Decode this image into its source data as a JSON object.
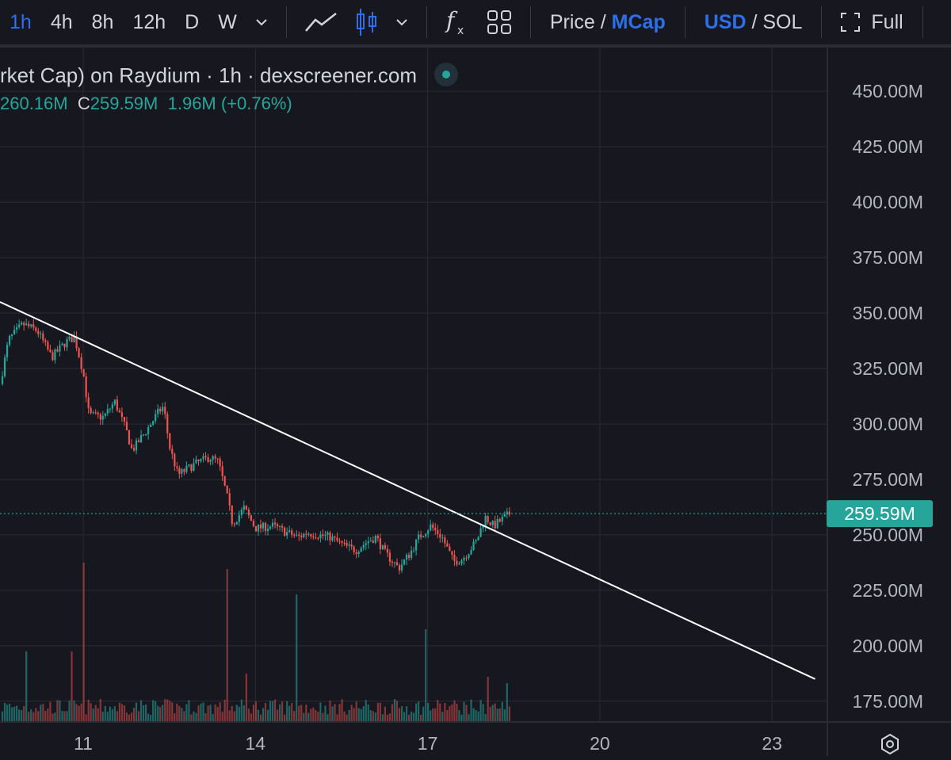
{
  "toolbar": {
    "intervals": [
      "1h",
      "4h",
      "8h",
      "12h",
      "D",
      "W"
    ],
    "active_interval": "1h",
    "price_label": "Price",
    "mcap_label": "MCap",
    "usd_label": "USD",
    "sol_label": "SOL",
    "separator": "/",
    "full_label": "Full",
    "icons": [
      "chevron-down-icon",
      "line-chart-icon",
      "candlestick-icon",
      "chevron-down-icon",
      "indicators-fx-icon",
      "layout-grid-icon",
      "fullscreen-icon"
    ]
  },
  "legend": {
    "title": "rket Cap) on Raydium · 1h · dexscreener.com",
    "high_value": "260.16M",
    "close_prefix": "C",
    "close_value": "259.59M",
    "change": "1.96M (+0.76%)"
  },
  "chart_data": {
    "type": "candlestick",
    "interval": "1h",
    "y_axis_labels": [
      "450.00M",
      "425.00M",
      "400.00M",
      "375.00M",
      "350.00M",
      "325.00M",
      "300.00M",
      "275.00M",
      "250.00M",
      "225.00M",
      "200.00M",
      "175.00M"
    ],
    "y_ticks": [
      450,
      425,
      400,
      375,
      350,
      325,
      300,
      275,
      250,
      225,
      200,
      175
    ],
    "ylim": [
      166,
      469
    ],
    "y_unit": "M (USD market cap)",
    "x_axis_labels": [
      "11",
      "14",
      "17",
      "20",
      "23"
    ],
    "x_ticks_day": [
      11,
      14,
      17,
      20,
      23
    ],
    "xlim_day": [
      9.55,
      23.95
    ],
    "last_value": 259.59,
    "last_value_label": "259.59M",
    "trendline": {
      "from": {
        "day": 9.55,
        "value": 355
      },
      "to": {
        "day": 23.75,
        "value": 185
      }
    },
    "price_path": [
      {
        "day": 9.55,
        "value": 318
      },
      {
        "day": 9.7,
        "value": 338
      },
      {
        "day": 9.95,
        "value": 345
      },
      {
        "day": 10.2,
        "value": 342
      },
      {
        "day": 10.45,
        "value": 330
      },
      {
        "day": 10.7,
        "value": 337
      },
      {
        "day": 10.85,
        "value": 339
      },
      {
        "day": 11.0,
        "value": 323
      },
      {
        "day": 11.1,
        "value": 304
      },
      {
        "day": 11.35,
        "value": 303
      },
      {
        "day": 11.55,
        "value": 310
      },
      {
        "day": 11.75,
        "value": 297
      },
      {
        "day": 11.85,
        "value": 288
      },
      {
        "day": 12.1,
        "value": 297
      },
      {
        "day": 12.3,
        "value": 305
      },
      {
        "day": 12.4,
        "value": 308
      },
      {
        "day": 12.5,
        "value": 290
      },
      {
        "day": 12.65,
        "value": 277
      },
      {
        "day": 12.95,
        "value": 282
      },
      {
        "day": 13.2,
        "value": 285
      },
      {
        "day": 13.35,
        "value": 283
      },
      {
        "day": 13.5,
        "value": 268
      },
      {
        "day": 13.6,
        "value": 255
      },
      {
        "day": 13.8,
        "value": 262
      },
      {
        "day": 14.0,
        "value": 253
      },
      {
        "day": 14.3,
        "value": 254
      },
      {
        "day": 14.55,
        "value": 251
      },
      {
        "day": 14.75,
        "value": 249
      },
      {
        "day": 14.9,
        "value": 251
      },
      {
        "day": 15.3,
        "value": 249
      },
      {
        "day": 15.55,
        "value": 245
      },
      {
        "day": 15.75,
        "value": 243
      },
      {
        "day": 15.95,
        "value": 247
      },
      {
        "day": 16.1,
        "value": 249
      },
      {
        "day": 16.25,
        "value": 242
      },
      {
        "day": 16.5,
        "value": 235
      },
      {
        "day": 16.7,
        "value": 242
      },
      {
        "day": 16.85,
        "value": 249
      },
      {
        "day": 17.05,
        "value": 254
      },
      {
        "day": 17.25,
        "value": 249
      },
      {
        "day": 17.45,
        "value": 238
      },
      {
        "day": 17.6,
        "value": 239
      },
      {
        "day": 17.85,
        "value": 247
      },
      {
        "day": 18.0,
        "value": 258
      },
      {
        "day": 18.15,
        "value": 254
      },
      {
        "day": 18.3,
        "value": 257
      },
      {
        "day": 18.45,
        "value": 260
      }
    ],
    "volume_spikes": [
      {
        "day": 10.0,
        "volume": 0.22
      },
      {
        "day": 10.8,
        "volume": 0.22
      },
      {
        "day": 11.0,
        "volume": 0.5
      },
      {
        "day": 13.5,
        "volume": 0.48
      },
      {
        "day": 13.85,
        "volume": 0.15
      },
      {
        "day": 14.7,
        "volume": 0.4
      },
      {
        "day": 16.95,
        "volume": 0.29
      },
      {
        "day": 18.05,
        "volume": 0.14
      },
      {
        "day": 18.4,
        "volume": 0.12
      }
    ],
    "colors": {
      "up": "#26a69a",
      "down": "#ef5350",
      "trendline": "#ffffff",
      "last_price_line": "#26a69a",
      "grid": "#2a2b33"
    }
  }
}
